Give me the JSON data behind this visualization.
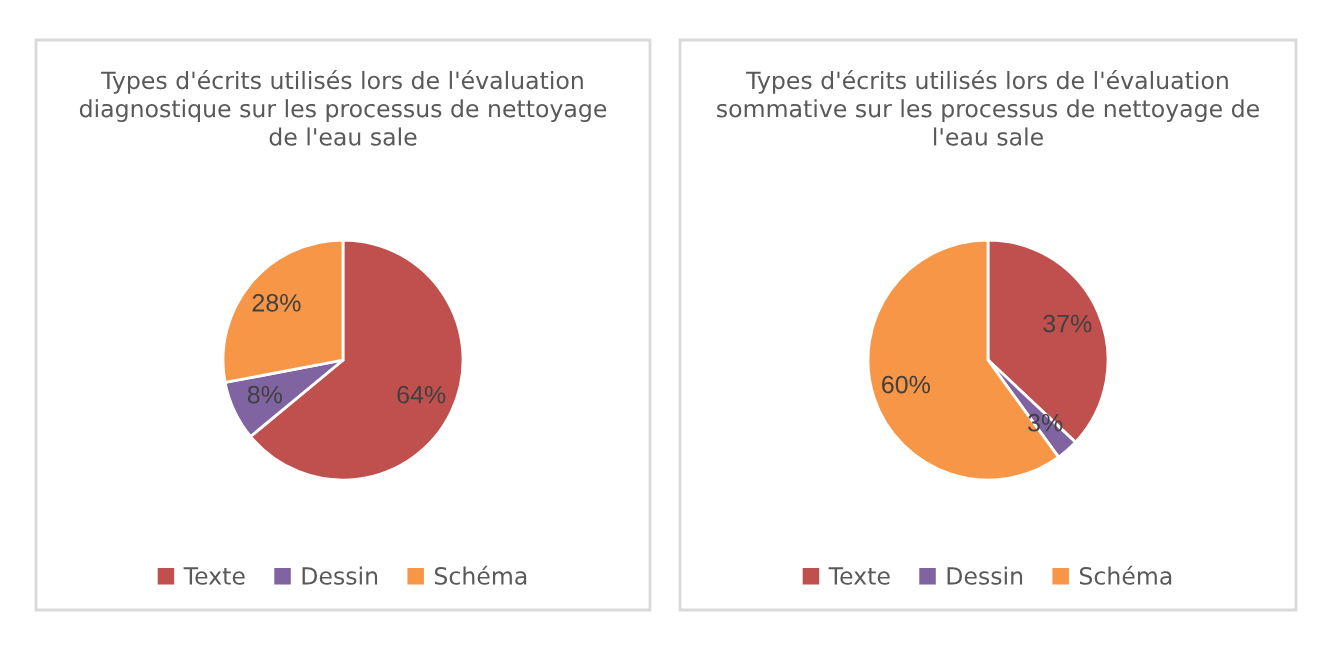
{
  "chart_data": [
    {
      "type": "pie",
      "title": "Types d'écrits utilisés lors de l'évaluation\ndiagnostique sur les processus de nettoyage\nde l'eau sale",
      "categories": [
        "Texte",
        "Dessin",
        "Schéma"
      ],
      "values": [
        64,
        8,
        28
      ],
      "colors": [
        "#c0504d",
        "#8064a2",
        "#f79646"
      ],
      "value_labels": [
        "64%",
        "8%",
        "28%"
      ],
      "legend": "bottom"
    },
    {
      "type": "pie",
      "title": "Types d'écrits utilisés lors de l'évaluation\nsommative sur les processus de nettoyage de\nl'eau sale",
      "categories": [
        "Texte",
        "Dessin",
        "Schéma"
      ],
      "values": [
        37,
        3,
        60
      ],
      "colors": [
        "#c0504d",
        "#8064a2",
        "#f79646"
      ],
      "value_labels": [
        "37%",
        "3%",
        "60%"
      ],
      "legend": "bottom"
    }
  ]
}
